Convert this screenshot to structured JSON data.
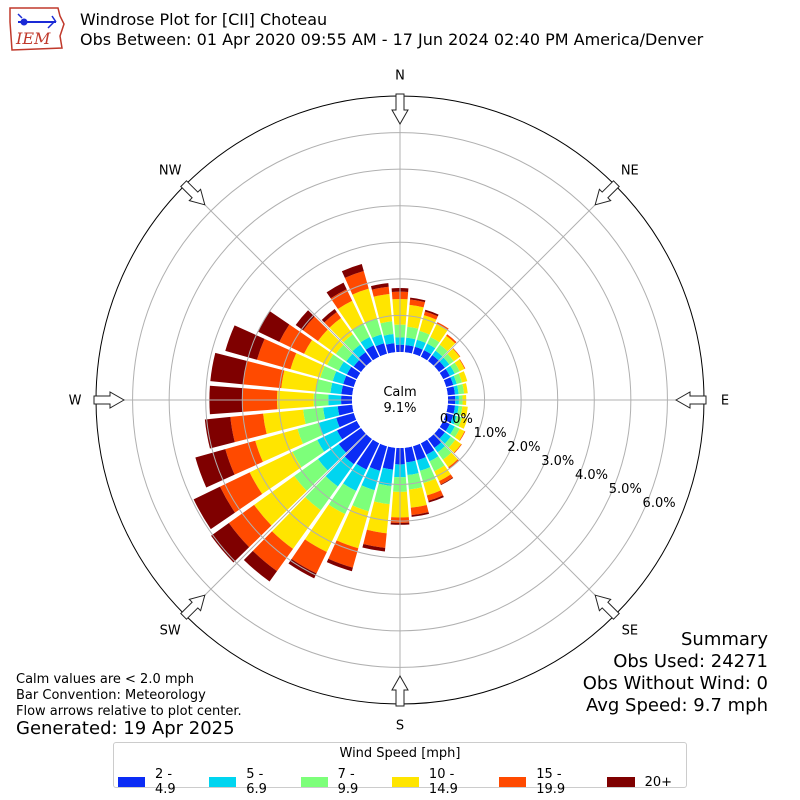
{
  "header": {
    "logo_text": "IEM",
    "title": "Windrose Plot for [CII] Choteau",
    "subtitle": "Obs Between: 01 Apr 2020 09:55 AM - 17 Jun 2024 02:40 PM America/Denver"
  },
  "notes": {
    "calm_def": "Calm values are < 2.0 mph",
    "bar_convention": "Bar Convention: Meteorology",
    "flow_arrows": "Flow arrows relative to plot center.",
    "generated": "Generated: 19 Apr 2025"
  },
  "summary": {
    "title": "Summary",
    "obs_used": "Obs Used: 24271",
    "obs_without_wind": "Obs Without Wind: 0",
    "avg_speed": "Avg Speed: 9.7 mph"
  },
  "legend": {
    "title": "Wind Speed [mph]",
    "items": [
      {
        "label": "2 - 4.9",
        "color": "#0b2cf5"
      },
      {
        "label": "5 - 6.9",
        "color": "#00d5f0"
      },
      {
        "label": "7 - 9.9",
        "color": "#7dff7a"
      },
      {
        "label": "10 - 14.9",
        "color": "#ffe500"
      },
      {
        "label": "15 - 19.9",
        "color": "#ff4a00"
      },
      {
        "label": "20+",
        "color": "#7f0000"
      }
    ]
  },
  "chart_data": {
    "type": "windrose",
    "title": "Windrose Plot for [CII] Choteau",
    "direction_labels": [
      "N",
      "NE",
      "E",
      "SE",
      "S",
      "SW",
      "W",
      "NW"
    ],
    "radial_ticks": [
      "0.0%",
      "1.0%",
      "2.0%",
      "3.0%",
      "4.0%",
      "5.0%",
      "6.0%"
    ],
    "radial_max": 7.0,
    "calm_label": "Calm",
    "calm_value": "9.1%",
    "units": "percent of observations",
    "direction_bins_deg": [
      0,
      10,
      20,
      30,
      40,
      50,
      60,
      70,
      80,
      90,
      100,
      110,
      120,
      130,
      140,
      150,
      160,
      170,
      180,
      190,
      200,
      210,
      220,
      230,
      240,
      250,
      260,
      270,
      280,
      290,
      300,
      310,
      320,
      330,
      340,
      350
    ],
    "speed_bins": [
      "2 - 4.9",
      "5 - 6.9",
      "7 - 9.9",
      "10 - 14.9",
      "15 - 19.9",
      "20+"
    ],
    "cumulative_percent": [
      [
        0.2,
        0.4,
        0.75,
        1.45,
        1.65,
        1.75
      ],
      [
        0.2,
        0.4,
        0.7,
        1.3,
        1.45,
        1.5
      ],
      [
        0.2,
        0.4,
        0.65,
        1.1,
        1.2,
        1.25
      ],
      [
        0.2,
        0.4,
        0.6,
        1.0,
        1.05,
        1.05
      ],
      [
        0.2,
        0.35,
        0.55,
        0.85,
        0.9,
        0.9
      ],
      [
        0.2,
        0.35,
        0.5,
        0.7,
        0.72,
        0.72
      ],
      [
        0.2,
        0.35,
        0.5,
        0.65,
        0.67,
        0.67
      ],
      [
        0.2,
        0.3,
        0.45,
        0.6,
        0.6,
        0.6
      ],
      [
        0.2,
        0.3,
        0.45,
        0.55,
        0.55,
        0.55
      ],
      [
        0.2,
        0.3,
        0.4,
        0.5,
        0.5,
        0.5
      ],
      [
        0.2,
        0.3,
        0.4,
        0.55,
        0.55,
        0.55
      ],
      [
        0.2,
        0.3,
        0.45,
        0.6,
        0.6,
        0.6
      ],
      [
        0.2,
        0.35,
        0.5,
        0.65,
        0.67,
        0.67
      ],
      [
        0.2,
        0.4,
        0.55,
        0.75,
        0.77,
        0.77
      ],
      [
        0.3,
        0.45,
        0.7,
        0.95,
        1.0,
        1.0
      ],
      [
        0.35,
        0.55,
        0.85,
        1.15,
        1.25,
        1.27
      ],
      [
        0.4,
        0.7,
        1.05,
        1.4,
        1.55,
        1.6
      ],
      [
        0.4,
        0.75,
        1.15,
        1.65,
        1.85,
        1.9
      ],
      [
        0.45,
        0.8,
        1.2,
        1.9,
        2.05,
        2.1
      ],
      [
        0.6,
        1.05,
        1.55,
        2.35,
        2.75,
        2.85
      ],
      [
        0.7,
        1.25,
        1.85,
        2.9,
        3.45,
        3.55
      ],
      [
        0.8,
        1.45,
        2.15,
        3.3,
        3.95,
        4.1
      ],
      [
        0.85,
        1.6,
        2.4,
        3.7,
        4.45,
        4.8
      ],
      [
        0.75,
        1.45,
        2.25,
        3.6,
        4.45,
        5.05
      ],
      [
        0.6,
        1.2,
        1.95,
        3.25,
        4.15,
        4.95
      ],
      [
        0.5,
        1.0,
        1.6,
        2.8,
        3.65,
        4.5
      ],
      [
        0.4,
        0.8,
        1.35,
        2.45,
        3.35,
        4.05
      ],
      [
        0.3,
        0.65,
        1.05,
        2.05,
        3.0,
        3.9
      ],
      [
        0.3,
        0.6,
        1.0,
        1.95,
        3.0,
        3.9
      ],
      [
        0.3,
        0.6,
        0.95,
        1.8,
        2.75,
        3.65
      ],
      [
        0.3,
        0.55,
        0.9,
        1.6,
        2.35,
        3.0
      ],
      [
        0.25,
        0.5,
        0.85,
        1.45,
        1.95,
        2.2
      ],
      [
        0.3,
        0.55,
        0.9,
        1.45,
        1.65,
        1.75
      ],
      [
        0.35,
        0.6,
        1.0,
        1.7,
        2.05,
        2.25
      ],
      [
        0.3,
        0.55,
        1.0,
        1.85,
        2.35,
        2.55
      ],
      [
        0.25,
        0.5,
        0.85,
        1.6,
        1.8,
        1.9
      ]
    ]
  }
}
